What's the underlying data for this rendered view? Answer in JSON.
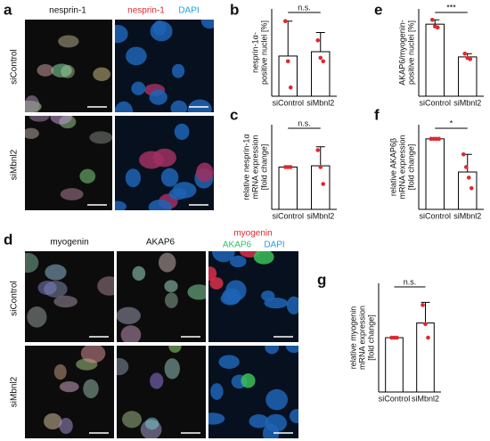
{
  "panel_a": {
    "letter": "a",
    "channels": [
      "nesprin-1"
    ],
    "merge_labels": [
      "nesprin-1",
      "DAPI"
    ],
    "rows": [
      "siControl",
      "siMbnl2"
    ]
  },
  "panel_d": {
    "letter": "d",
    "channels": [
      "myogenin",
      "AKAP6"
    ],
    "merge_labels": [
      "myogenin",
      "AKAP6",
      "DAPI"
    ],
    "rows": [
      "siControl",
      "siMbnl2"
    ]
  },
  "chart_data": [
    {
      "type": "bar",
      "panel": "b",
      "ylabel": [
        "nesprin-1α-",
        "positive nuclei [%]"
      ],
      "categories": [
        "siControl",
        "siMbnl2"
      ],
      "values": [
        23,
        25.5
      ],
      "errors": [
        20,
        11
      ],
      "points": [
        [
          43,
          20,
          5
        ],
        [
          32,
          22,
          20
        ]
      ],
      "ylim": [
        0,
        50
      ],
      "color": "#ffffff",
      "point_color": "#e0282e",
      "annotation": "n.s."
    },
    {
      "type": "bar",
      "panel": "c",
      "ylabel": [
        "relative nesprin-1α",
        "mRNA expression",
        "[fold change]"
      ],
      "categories": [
        "siControl",
        "siMbnl2"
      ],
      "values": [
        1,
        1.03
      ],
      "errors": [
        0,
        0.45
      ],
      "points": [
        [
          1,
          1,
          1
        ],
        [
          1.4,
          1.0,
          0.6
        ]
      ],
      "ylim": [
        0,
        2
      ],
      "color": "#ffffff",
      "point_color": "#e0282e",
      "annotation": "n.s."
    },
    {
      "type": "bar",
      "panel": "e",
      "ylabel": [
        "AKAP6/myogenin-",
        "positive nuclei [%]"
      ],
      "categories": [
        "siControl",
        "siMbnl2"
      ],
      "values": [
        66,
        36
      ],
      "errors": [
        4,
        3
      ],
      "points": [
        [
          70,
          64,
          63
        ],
        [
          39,
          35,
          34
        ]
      ],
      "ylim": [
        0,
        80
      ],
      "color": "#ffffff",
      "point_color": "#e0282e",
      "annotation": "***"
    },
    {
      "type": "bar",
      "panel": "f",
      "ylabel": [
        "relative AKAP6β",
        "mRNA expression",
        "[fold change]"
      ],
      "categories": [
        "siControl",
        "siMbnl2"
      ],
      "values": [
        1,
        0.53
      ],
      "errors": [
        0,
        0.25
      ],
      "points": [
        [
          1,
          1,
          1,
          1
        ],
        [
          0.78,
          0.6,
          0.45,
          0.3
        ]
      ],
      "ylim": [
        0,
        1.2
      ],
      "color": "#ffffff",
      "point_color": "#e0282e",
      "annotation": "*"
    },
    {
      "type": "bar",
      "panel": "g",
      "ylabel": [
        "relative myogenin",
        "mRNA expression",
        "[fold change]"
      ],
      "categories": [
        "siControl",
        "siMbnl2"
      ],
      "values": [
        1,
        1.27
      ],
      "errors": [
        0,
        0.38
      ],
      "points": [
        [
          1,
          1,
          1
        ],
        [
          1.6,
          1.25,
          1.0
        ]
      ],
      "ylim": [
        0,
        2
      ],
      "color": "#ffffff",
      "point_color": "#e0282e",
      "annotation": "n.s."
    }
  ]
}
